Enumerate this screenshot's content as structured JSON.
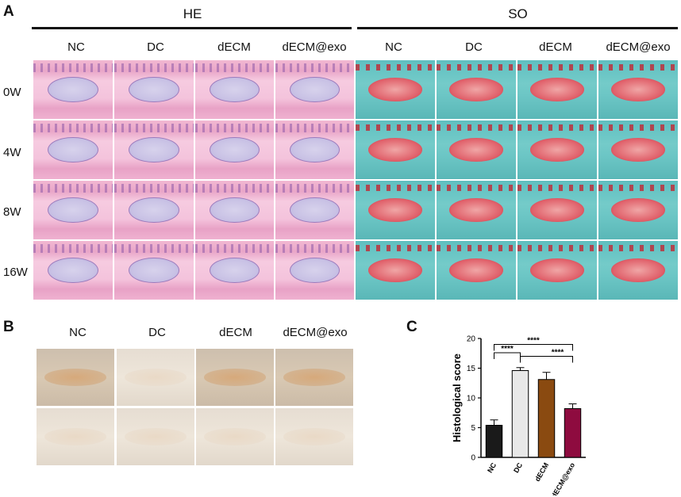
{
  "panels": {
    "a": "A",
    "b": "B",
    "c": "C"
  },
  "panel_a": {
    "stain_headers": [
      "HE",
      "SO"
    ],
    "columns": [
      "NC",
      "DC",
      "dECM",
      "dECM@exo",
      "NC",
      "DC",
      "dECM",
      "dECM@exo"
    ],
    "rows": [
      "0W",
      "4W",
      "8W",
      "16W"
    ]
  },
  "panel_b": {
    "columns": [
      "NC",
      "DC",
      "dECM",
      "dECM@exo"
    ]
  },
  "chart_data": {
    "type": "bar",
    "categories": [
      "NC",
      "DC",
      "dECM",
      "dECM@exo"
    ],
    "values": [
      5.4,
      14.6,
      13.1,
      8.2
    ],
    "errors": [
      0.9,
      0.5,
      1.2,
      0.8
    ],
    "bar_colors": [
      "#1a1a1a",
      "#e8e8e8",
      "#8a4a10",
      "#8e0b3f"
    ],
    "ylabel": "Histological score",
    "xlabel": "",
    "ylim": [
      0,
      20
    ],
    "yticks": [
      0,
      5,
      10,
      15,
      20
    ],
    "significance": [
      {
        "from": "NC",
        "to": "DC",
        "label": "****"
      },
      {
        "from": "DC",
        "to": "dECM@exo",
        "label": "****"
      },
      {
        "from": "NC",
        "to": "dECM@exo",
        "label": "****"
      }
    ]
  }
}
